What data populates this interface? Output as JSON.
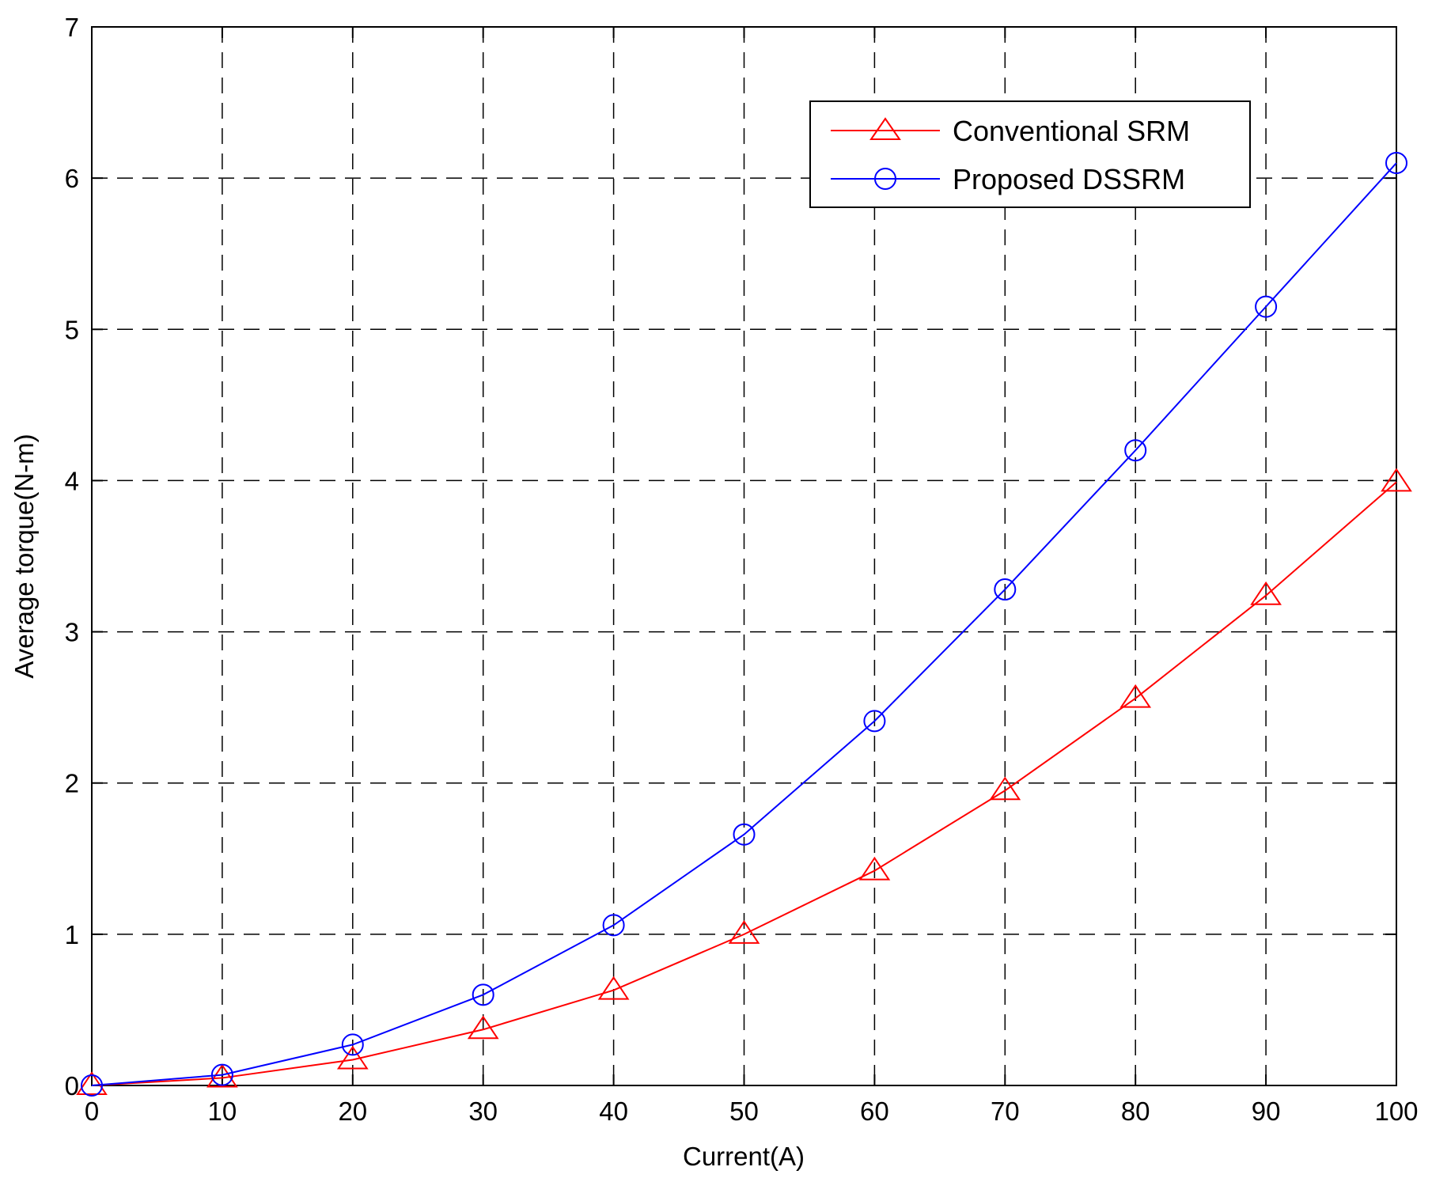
{
  "chart_data": {
    "type": "line",
    "title": "",
    "xlabel": "Current(A)",
    "ylabel": "Average torque(N-m)",
    "xlim": [
      0,
      100
    ],
    "ylim": [
      0,
      7
    ],
    "xticks": [
      0,
      10,
      20,
      30,
      40,
      50,
      60,
      70,
      80,
      90,
      100
    ],
    "yticks": [
      0,
      1,
      2,
      3,
      4,
      5,
      6,
      7
    ],
    "grid": true,
    "grid_style": "dashed",
    "legend_position": "top-right",
    "x": [
      0,
      10,
      20,
      30,
      40,
      50,
      60,
      70,
      80,
      90,
      100
    ],
    "series": [
      {
        "name": "Conventional SRM",
        "color": "#ff0000",
        "marker": "triangle",
        "values": [
          0,
          0.05,
          0.17,
          0.37,
          0.63,
          1.0,
          1.42,
          1.95,
          2.56,
          3.24,
          3.99
        ]
      },
      {
        "name": "Proposed DSSRM",
        "color": "#0000ff",
        "marker": "circle",
        "values": [
          0,
          0.07,
          0.27,
          0.6,
          1.06,
          1.66,
          2.41,
          3.28,
          4.2,
          5.15,
          6.1
        ]
      }
    ]
  }
}
